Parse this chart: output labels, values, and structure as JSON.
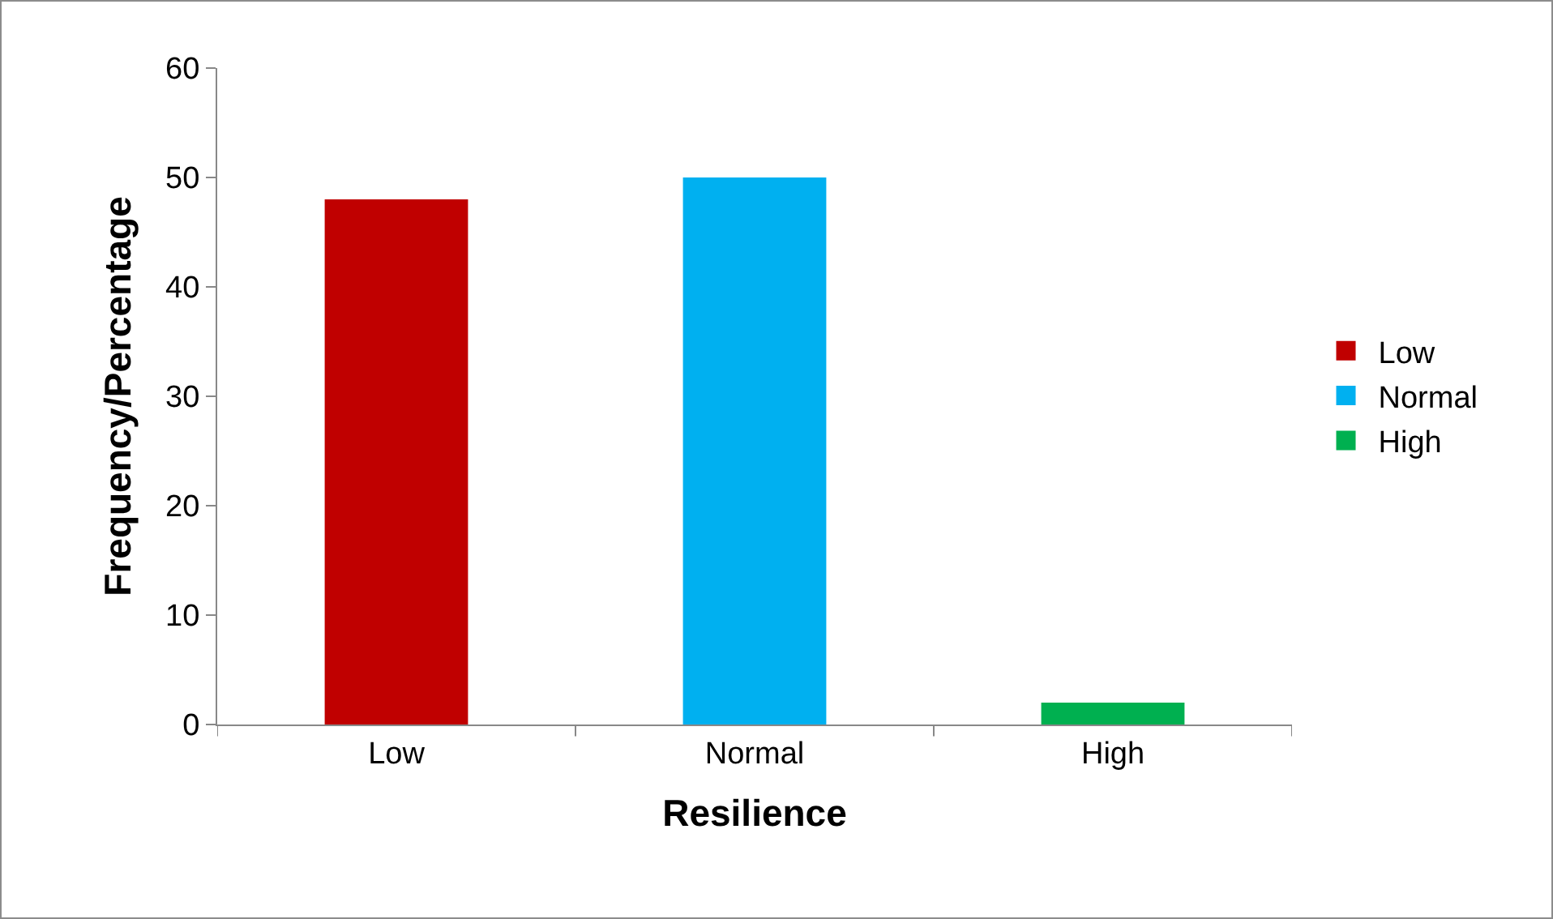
{
  "chart_data": {
    "type": "bar",
    "xlabel": "Resilience",
    "ylabel": "Frequency/Percentage",
    "categories": [
      "Low",
      "Normal",
      "High"
    ],
    "series": [
      {
        "name": "Low",
        "color": "#c00000",
        "values": [
          48,
          null,
          null
        ]
      },
      {
        "name": "Normal",
        "color": "#00b0f0",
        "values": [
          null,
          50,
          null
        ]
      },
      {
        "name": "High",
        "color": "#00b050",
        "values": [
          null,
          null,
          2
        ]
      }
    ],
    "ylim": [
      0,
      60
    ],
    "yticks": [
      0,
      10,
      20,
      30,
      40,
      50,
      60
    ],
    "grid": false,
    "legend": "right"
  }
}
